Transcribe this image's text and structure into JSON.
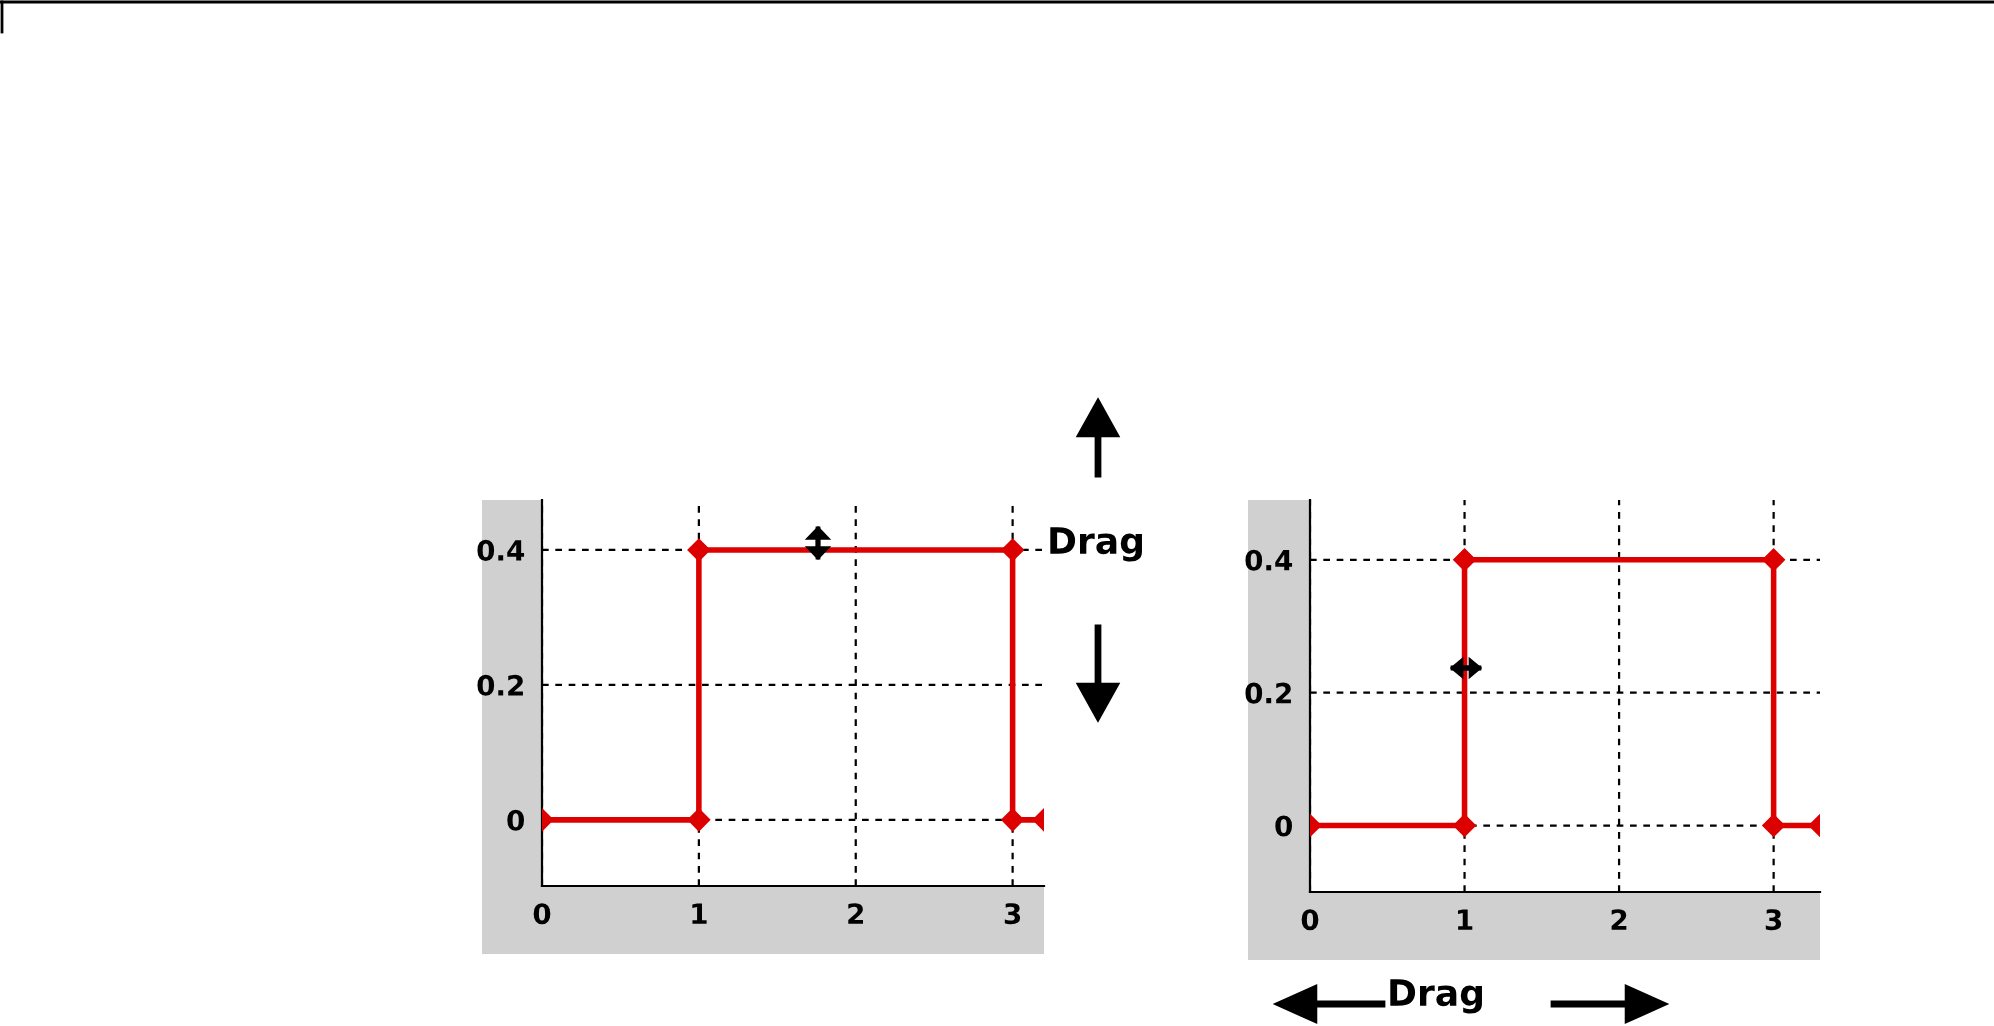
{
  "chart_data": [
    {
      "type": "line",
      "x": [
        0,
        1,
        1,
        3,
        3,
        3.2
      ],
      "series": [
        {
          "color": "#dd0000",
          "values": [
            0,
            0,
            0.4,
            0.4,
            0,
            0
          ]
        }
      ],
      "xlim": [
        0,
        3.2
      ],
      "ylim": [
        -0.098,
        0.474
      ],
      "xticks": [
        0,
        1,
        2,
        3
      ],
      "yticks": [
        0,
        0.2,
        0.4
      ],
      "grid": true,
      "marker": "diamond",
      "line_style": "solid",
      "annotations": [
        "Drag"
      ]
    },
    {
      "type": "line",
      "x": [
        0,
        1,
        1,
        3,
        3,
        3.3
      ],
      "series": [
        {
          "color": "#dd0000",
          "values": [
            0,
            0,
            0.4,
            0.4,
            0,
            0
          ]
        }
      ],
      "xlim": [
        0,
        3.3
      ],
      "ylim": [
        -0.1,
        0.49
      ],
      "xticks": [
        0,
        1,
        2,
        3
      ],
      "yticks": [
        0,
        0.2,
        0.4
      ],
      "grid": true,
      "marker": "diamond",
      "line_style": "solid",
      "annotations": [
        "Drag"
      ]
    }
  ]
}
